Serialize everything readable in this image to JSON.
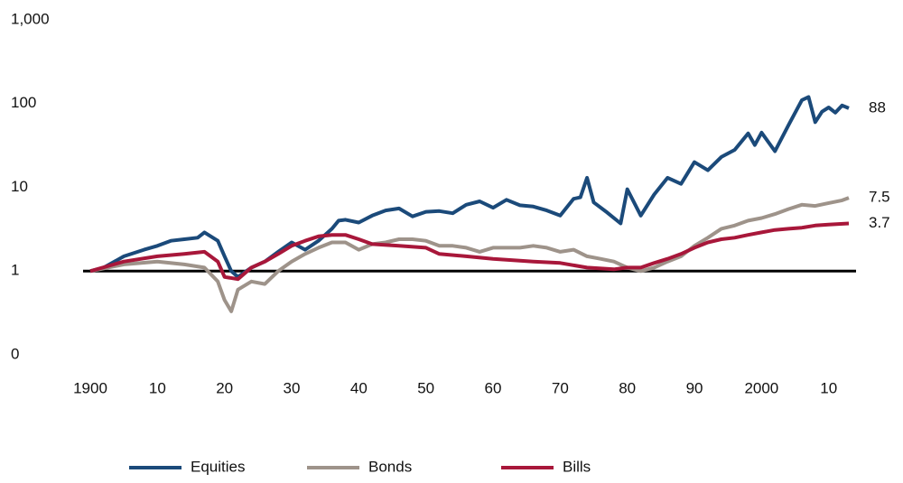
{
  "chart_data": {
    "type": "line",
    "log_y": true,
    "grid": false,
    "legend": "bottom",
    "reference_line": 1,
    "reference_color": "#000000",
    "xlim": [
      1900,
      2013
    ],
    "ylim": [
      0.1,
      1000
    ],
    "xticks": [
      1900,
      {
        "value": 1910,
        "label": "10"
      },
      {
        "value": 1920,
        "label": "20"
      },
      {
        "value": 1930,
        "label": "30"
      },
      {
        "value": 1940,
        "label": "40"
      },
      {
        "value": 1950,
        "label": "50"
      },
      {
        "value": 1960,
        "label": "60"
      },
      {
        "value": 1970,
        "label": "70"
      },
      {
        "value": 1980,
        "label": "80"
      },
      {
        "value": 1990,
        "label": "90"
      },
      2000,
      {
        "value": 2010,
        "label": "10"
      }
    ],
    "yticks": [
      {
        "value": 0.1,
        "label": "0"
      },
      1,
      10,
      100,
      {
        "value": 1000,
        "label": "1,000"
      }
    ],
    "series": [
      {
        "name": "Equities",
        "color": "#1b4a7a",
        "x": [
          1900,
          1902,
          1905,
          1908,
          1910,
          1912,
          1914,
          1916,
          1917,
          1919,
          1920,
          1921,
          1922,
          1924,
          1926,
          1928,
          1930,
          1932,
          1934,
          1936,
          1937,
          1938,
          1940,
          1942,
          1944,
          1946,
          1948,
          1950,
          1952,
          1954,
          1956,
          1958,
          1960,
          1962,
          1964,
          1966,
          1968,
          1970,
          1972,
          1973,
          1974,
          1975,
          1977,
          1979,
          1980,
          1982,
          1984,
          1986,
          1988,
          1990,
          1992,
          1994,
          1996,
          1998,
          1999,
          2000,
          2002,
          2004,
          2006,
          2007,
          2008,
          2009,
          2010,
          2011,
          2012,
          2013
        ],
        "values": [
          1,
          1.1,
          1.5,
          1.8,
          2.0,
          2.3,
          2.4,
          2.5,
          2.9,
          2.3,
          1.5,
          1.0,
          0.85,
          1.1,
          1.3,
          1.7,
          2.2,
          1.8,
          2.3,
          3.2,
          4.0,
          4.1,
          3.8,
          4.6,
          5.3,
          5.6,
          4.5,
          5.1,
          5.2,
          4.9,
          6.2,
          6.8,
          5.7,
          7.1,
          6.1,
          5.9,
          5.3,
          4.6,
          7.3,
          7.6,
          13,
          6.6,
          5.0,
          3.7,
          9.5,
          4.6,
          8.2,
          13,
          11,
          20,
          16,
          23,
          28,
          44,
          32,
          45,
          27,
          55,
          110,
          120,
          60,
          80,
          90,
          78,
          95,
          88
        ]
      },
      {
        "name": "Bonds",
        "color": "#9e938a",
        "x": [
          1900,
          1905,
          1910,
          1914,
          1917,
          1919,
          1920,
          1921,
          1922,
          1924,
          1926,
          1928,
          1930,
          1932,
          1934,
          1936,
          1938,
          1940,
          1942,
          1944,
          1946,
          1948,
          1950,
          1952,
          1954,
          1956,
          1958,
          1960,
          1962,
          1964,
          1966,
          1968,
          1970,
          1972,
          1974,
          1976,
          1978,
          1980,
          1982,
          1984,
          1986,
          1988,
          1990,
          1992,
          1994,
          1996,
          1998,
          2000,
          2002,
          2004,
          2006,
          2008,
          2010,
          2012,
          2013
        ],
        "values": [
          1,
          1.2,
          1.3,
          1.2,
          1.1,
          0.75,
          0.45,
          0.33,
          0.6,
          0.75,
          0.7,
          1.0,
          1.3,
          1.6,
          1.9,
          2.2,
          2.2,
          1.8,
          2.1,
          2.2,
          2.4,
          2.4,
          2.3,
          2.0,
          2.0,
          1.9,
          1.7,
          1.9,
          1.9,
          1.9,
          2.0,
          1.9,
          1.7,
          1.8,
          1.5,
          1.4,
          1.3,
          1.1,
          1.0,
          1.1,
          1.3,
          1.5,
          2.0,
          2.5,
          3.2,
          3.5,
          4.0,
          4.3,
          4.8,
          5.5,
          6.2,
          6.0,
          6.5,
          7.0,
          7.5
        ]
      },
      {
        "name": "Bills",
        "color": "#a8173a",
        "x": [
          1900,
          1905,
          1910,
          1914,
          1917,
          1919,
          1920,
          1922,
          1924,
          1926,
          1928,
          1930,
          1932,
          1934,
          1936,
          1938,
          1940,
          1942,
          1946,
          1950,
          1952,
          1956,
          1960,
          1966,
          1970,
          1974,
          1978,
          1980,
          1982,
          1984,
          1986,
          1988,
          1990,
          1992,
          1994,
          1996,
          1998,
          2000,
          2002,
          2004,
          2006,
          2008,
          2010,
          2013
        ],
        "values": [
          1,
          1.3,
          1.5,
          1.6,
          1.7,
          1.3,
          0.85,
          0.8,
          1.1,
          1.3,
          1.6,
          2.0,
          2.3,
          2.6,
          2.7,
          2.7,
          2.4,
          2.1,
          2.0,
          1.9,
          1.6,
          1.5,
          1.4,
          1.3,
          1.25,
          1.1,
          1.05,
          1.1,
          1.1,
          1.25,
          1.4,
          1.6,
          1.9,
          2.2,
          2.4,
          2.5,
          2.7,
          2.9,
          3.1,
          3.2,
          3.3,
          3.5,
          3.6,
          3.7
        ]
      }
    ]
  }
}
